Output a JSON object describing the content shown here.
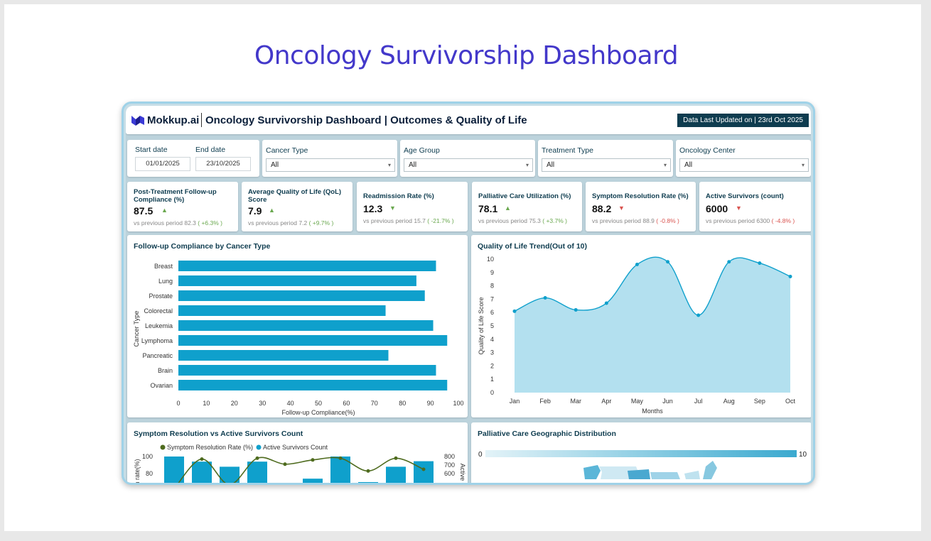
{
  "page_title": "Oncology Survivorship Dashboard",
  "header": {
    "brand": "Mokkup.ai",
    "title": "Oncology Survivorship Dashboard | Outcomes & Quality of Life",
    "updated": "Data Last Updated on | 23rd Oct 2025"
  },
  "filters": {
    "start_label": "Start date",
    "start_value": "01/01/2025",
    "end_label": "End date",
    "end_value": "23/10/2025",
    "cancer_type": {
      "label": "Cancer Type",
      "value": "All"
    },
    "age_group": {
      "label": "Age Group",
      "value": "All"
    },
    "treatment_type": {
      "label": "Treatment Type",
      "value": "All"
    },
    "oncology_center": {
      "label": "Oncology Center",
      "value": "All"
    }
  },
  "kpis": [
    {
      "title": "Post-Treatment Follow-up Compliance (%)",
      "value": "87.5",
      "dir": "up",
      "prev_label": "vs previous period",
      "prev": "82.3",
      "change": "( +6.3% )"
    },
    {
      "title": "Average Quality of Life (QoL) Score",
      "value": "7.9",
      "dir": "up",
      "prev_label": "vs previous period",
      "prev": "7.2",
      "change": "( +9.7% )"
    },
    {
      "title": "Readmission Rate (%)",
      "value": "12.3",
      "dir": "down_good",
      "prev_label": "vs previous period",
      "prev": "15.7",
      "change": "( -21.7% )"
    },
    {
      "title": "Palliative Care Utilization (%)",
      "value": "78.1",
      "dir": "up",
      "prev_label": "vs previous period",
      "prev": "75.3",
      "change": "( +3.7% )"
    },
    {
      "title": "Symptom Resolution Rate (%)",
      "value": "88.2",
      "dir": "down",
      "prev_label": "vs previous period",
      "prev": "88.9",
      "change": "( -0.8% )"
    },
    {
      "title": "Active Survivors (count)",
      "value": "6000",
      "dir": "down",
      "prev_label": "vs previous period",
      "prev": "6300",
      "change": "( -4.8% )"
    }
  ],
  "charts": {
    "compliance_title": "Follow-up Compliance by Cancer Type",
    "qol_title": "Quality of Life Trend(Out of 10)",
    "symptom_title": "Symptom Resolution vs Active Survivors Count",
    "palliative_title": "Palliative Care Geographic Distribution"
  },
  "colors": {
    "accent": "#4338ca",
    "bar": "#0fa0cc",
    "area": "#b3e0ef",
    "line": "#0fa0cc",
    "header": "#0e3c4f",
    "symptom_line": "#4e6b1e"
  },
  "chart_data": [
    {
      "type": "bar",
      "title": "Follow-up Compliance by Cancer Type",
      "orientation": "horizontal",
      "categories": [
        "Breast",
        "Lung",
        "Prostate",
        "Colorectal",
        "Leukemia",
        "Lymphoma",
        "Pancreatic",
        "Brain",
        "Ovarian"
      ],
      "values": [
        92,
        85,
        88,
        74,
        91,
        96,
        75,
        92,
        96
      ],
      "xlabel": "Follow-up Compliance(%)",
      "ylabel": "Cancer Type",
      "xlim": [
        0,
        100
      ],
      "xticks": [
        0,
        10,
        20,
        30,
        40,
        50,
        60,
        70,
        80,
        90,
        100
      ]
    },
    {
      "type": "area",
      "title": "Quality of Life Trend(Out of 10)",
      "categories": [
        "Jan",
        "Feb",
        "Mar",
        "Apr",
        "May",
        "Jun",
        "Jul",
        "Aug",
        "Sep",
        "Oct"
      ],
      "values": [
        6.1,
        7.1,
        6.2,
        6.7,
        9.6,
        9.8,
        5.8,
        9.8,
        9.7,
        8.7
      ],
      "xlabel": "Months",
      "ylabel": "Quality of Life Score",
      "ylim": [
        0,
        10
      ],
      "yticks": [
        0,
        1,
        2,
        3,
        4,
        5,
        6,
        7,
        8,
        9,
        10
      ]
    },
    {
      "type": "bar",
      "title": "Symptom Resolution vs Active Survivors Count",
      "series": [
        {
          "name": "Symptom Resolution Rate (%)",
          "type": "line",
          "values": [
            62,
            97,
            67,
            98,
            91,
            96,
            98,
            83,
            98,
            85
          ]
        },
        {
          "name": "Active Survivors Count",
          "type": "bar",
          "values": [
            800,
            740,
            680,
            740,
            480,
            540,
            800,
            500,
            680,
            745
          ]
        }
      ],
      "y_left_label": "n rate(%)",
      "y_left_ticks": [
        80,
        100
      ],
      "y_right_label": "Active",
      "y_right_ticks": [
        600,
        700,
        800
      ]
    },
    {
      "type": "heatmap",
      "title": "Palliative Care Geographic Distribution",
      "scale_min": "0",
      "scale_max": "10"
    }
  ]
}
